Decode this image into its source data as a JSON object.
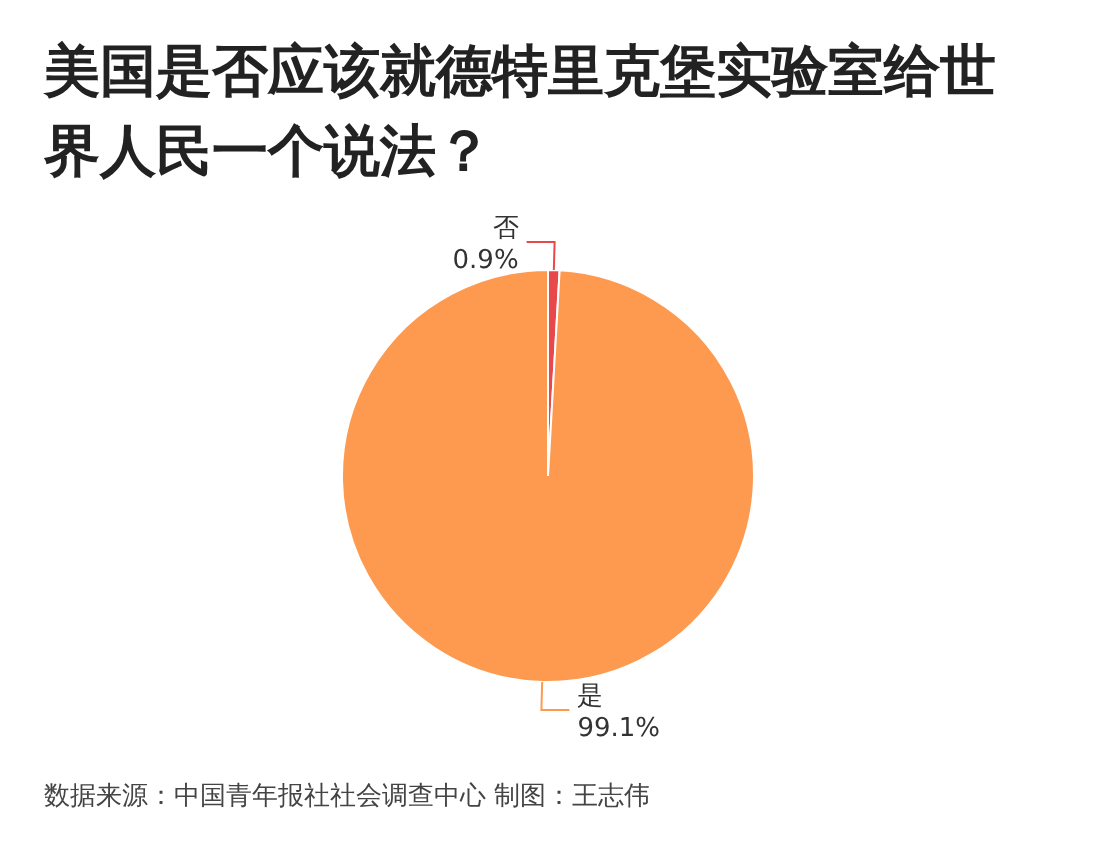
{
  "chart_data": {
    "type": "pie",
    "title": "美国是否应该就德特里克堡实验室给世界人民一个说法？",
    "categories": [
      "否",
      "是"
    ],
    "values": [
      0.9,
      99.1
    ],
    "value_labels": [
      "0.9%",
      "99.1%"
    ],
    "colors": [
      "#e8474c",
      "#fe9a50"
    ],
    "annotations": [
      "数据来源：中国青年报社社会调查中心 制图：王志伟"
    ]
  }
}
